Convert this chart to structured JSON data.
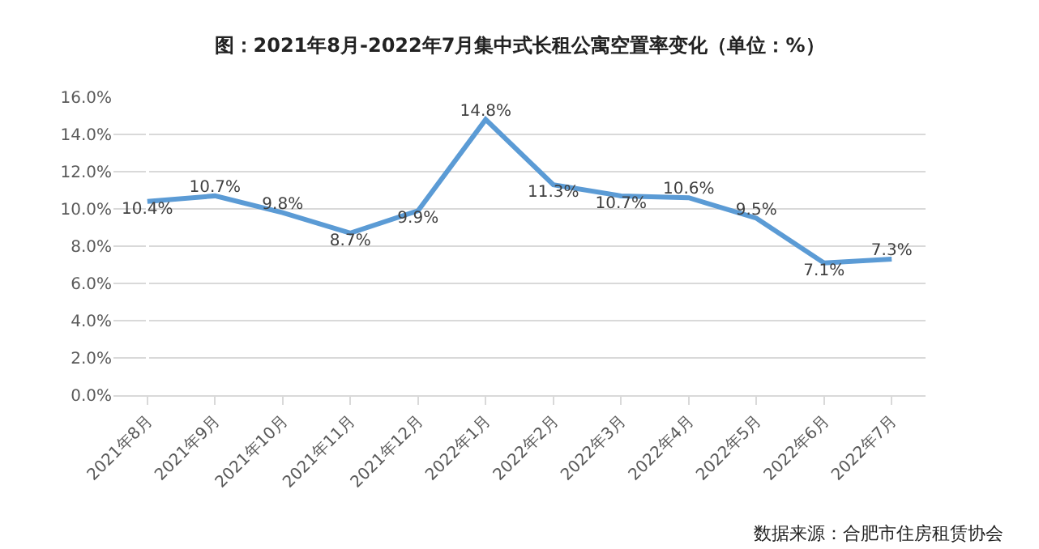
{
  "chart_data": {
    "type": "line",
    "title": "图：2021年8月-2022年7月集中式长租公寓空置率变化（单位：%）",
    "categories": [
      "2021年8月",
      "2021年9月",
      "2021年10月",
      "2021年11月",
      "2021年12月",
      "2022年1月",
      "2022年2月",
      "2022年3月",
      "2022年4月",
      "2022年5月",
      "2022年6月",
      "2022年7月"
    ],
    "series": [
      {
        "color": "#5b9bd5",
        "values": [
          10.4,
          10.7,
          9.8,
          8.7,
          9.9,
          14.8,
          11.3,
          10.7,
          10.6,
          9.5,
          7.1,
          7.3
        ],
        "value_labels": [
          "10.4%",
          "10.7%",
          "9.8%",
          "8.7%",
          "9.9%",
          "14.8%",
          "11.3%",
          "10.7%",
          "10.6%",
          "9.5%",
          "7.1%",
          "7.3%"
        ]
      }
    ],
    "ylim": [
      0,
      16
    ],
    "yticks": [
      {
        "value": 0,
        "label": "0.0%"
      },
      {
        "value": 2,
        "label": "2.0%"
      },
      {
        "value": 4,
        "label": "4.0%"
      },
      {
        "value": 6,
        "label": "6.0%"
      },
      {
        "value": 8,
        "label": "8.0%"
      },
      {
        "value": 10,
        "label": "10.0%"
      },
      {
        "value": 12,
        "label": "12.0%"
      },
      {
        "value": 14,
        "label": "14.0%"
      },
      {
        "value": 16,
        "label": "16.0%"
      }
    ],
    "grid": "y",
    "legend": false,
    "marker": "none",
    "line_style": "solid",
    "annotations": [
      "数据来源：合肥市住房租赁协会"
    ]
  }
}
